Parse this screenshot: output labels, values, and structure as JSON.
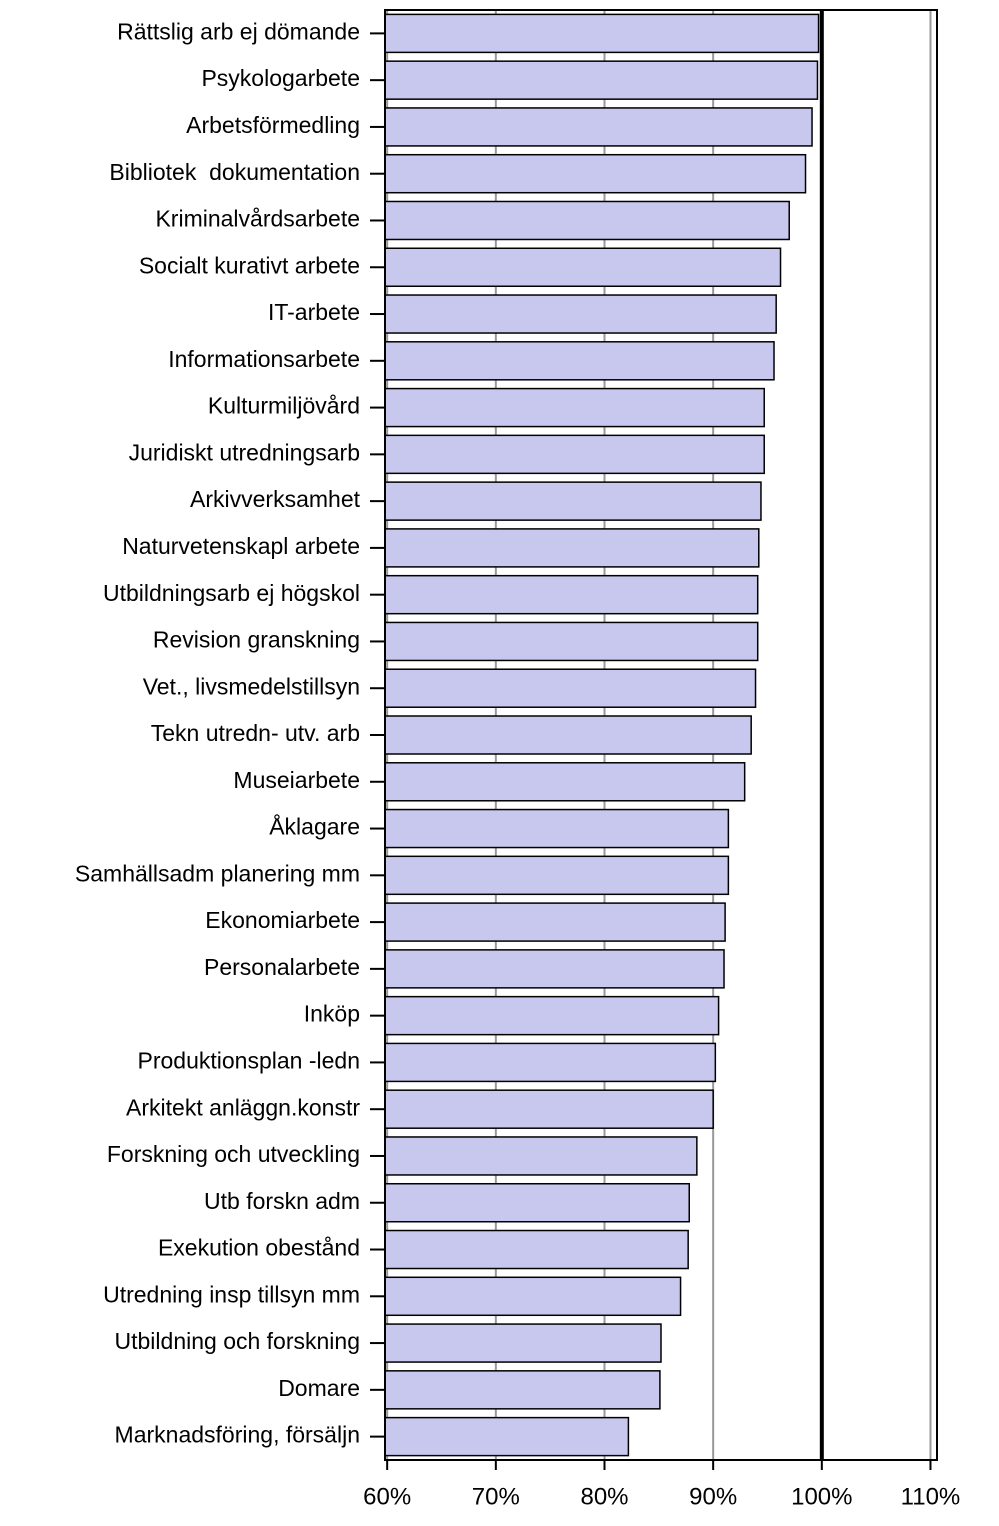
{
  "chart_data": {
    "type": "barh",
    "categories": [
      "Rättslig arb ej dömande",
      "Psykologarbete",
      "Arbetsförmedling",
      "Bibliotek  dokumentation",
      "Kriminalvårdsarbete",
      "Socialt kurativt arbete",
      "IT-arbete",
      "Informationsarbete",
      "Kulturmiljövård",
      "Juridiskt utredningsarb",
      "Arkivverksamhet",
      "Naturvetenskapl arbete",
      "Utbildningsarb ej högskol",
      "Revision granskning",
      "Vet., livsmedelstillsyn",
      "Tekn utredn- utv. arb",
      "Museiarbete",
      "Åklagare",
      "Samhällsadm planering mm",
      "Ekonomiarbete",
      "Personalarbete",
      "Inköp",
      "Produktionsplan -ledn",
      "Arkitekt anläggn.konstr",
      "Forskning och utveckling",
      "Utb forskn adm",
      "Exekution obestånd",
      "Utredning insp tillsyn mm",
      "Utbildning och forskning",
      "Domare",
      "Marknadsföring, försäljn"
    ],
    "values": [
      99.7,
      99.6,
      99.1,
      98.5,
      97.0,
      96.2,
      95.8,
      95.6,
      94.7,
      94.7,
      94.4,
      94.2,
      94.1,
      94.1,
      93.9,
      93.5,
      92.9,
      91.4,
      91.4,
      91.1,
      91.0,
      90.5,
      90.2,
      90.0,
      88.5,
      87.8,
      87.7,
      87.0,
      85.2,
      85.1,
      82.2
    ],
    "color": "#c8c8ee",
    "xlim": [
      59.8,
      110.6
    ],
    "xticks": [
      {
        "value": 60,
        "label": "60%"
      },
      {
        "value": 70,
        "label": "70%"
      },
      {
        "value": 80,
        "label": "80%"
      },
      {
        "value": 90,
        "label": "90%"
      },
      {
        "value": 100,
        "label": "100%"
      },
      {
        "value": 110,
        "label": "110%"
      }
    ],
    "grid": true,
    "reference_line": 100
  }
}
